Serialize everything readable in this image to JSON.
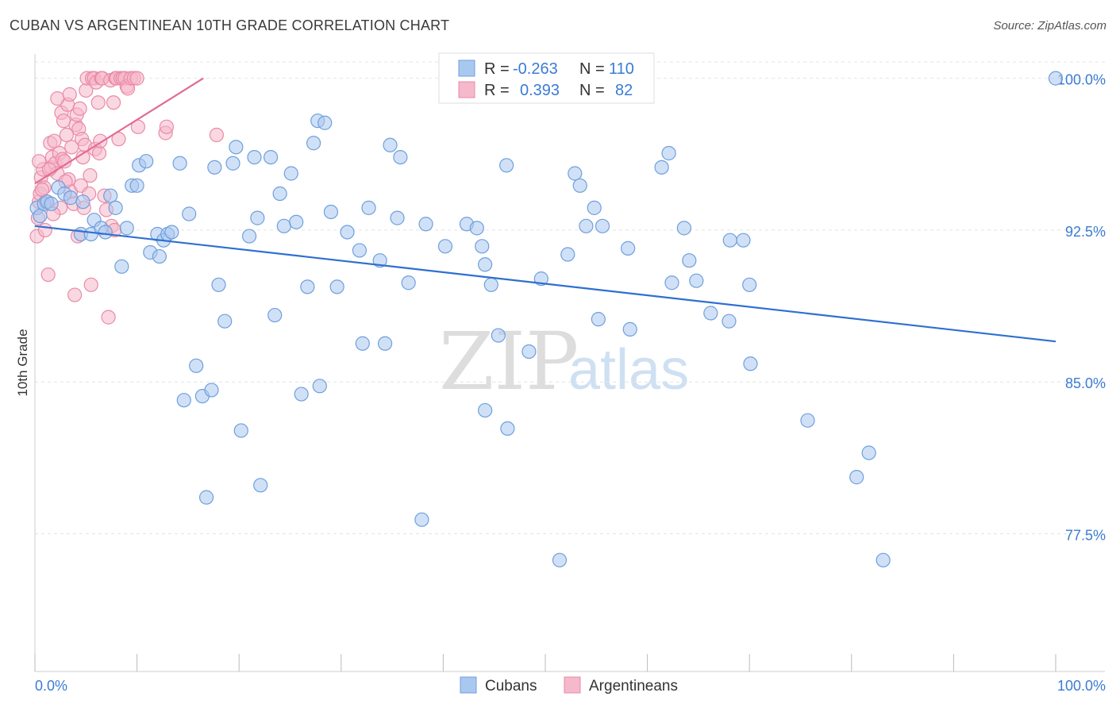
{
  "title": "CUBAN VS ARGENTINEAN 10TH GRADE CORRELATION CHART",
  "source": "Source: ZipAtlas.com",
  "watermark": {
    "part1": "ZIP",
    "part2": "atlas"
  },
  "colors": {
    "blue_fill": "#a9c8f0",
    "blue_stroke": "#6f9fdc",
    "blue_line": "#2f6fd0",
    "pink_fill": "#f6b8cb",
    "pink_stroke": "#e98aa9",
    "pink_line": "#e36a94",
    "tick_label": "#3a7bd5",
    "grid": "#e4e4e4"
  },
  "legend": {
    "rows": [
      {
        "series": "Cubans",
        "r_label": "R =",
        "r_value": "-0.263",
        "n_label": "N =",
        "n_value": "110"
      },
      {
        "series": "Argentineans",
        "r_label": "R =",
        "r_value": "0.393",
        "n_label": "N =",
        "n_value": "82"
      }
    ]
  },
  "chart_data": {
    "type": "scatter",
    "title": "CUBAN VS ARGENTINEAN 10TH GRADE CORRELATION CHART",
    "xlabel": "",
    "ylabel": "10th Grade",
    "xlim": [
      0,
      100
    ],
    "ylim": [
      70.7,
      101.2
    ],
    "x_tick_labels": [
      "0.0%",
      "100.0%"
    ],
    "y_ticks": [
      77.5,
      85.0,
      92.5,
      100.0
    ],
    "y_tick_labels": [
      "77.5%",
      "85.0%",
      "92.5%",
      "100.0%"
    ],
    "grid": true,
    "legend_position": "top-center",
    "series": [
      {
        "name": "Cubans",
        "trend": {
          "x": [
            0,
            100
          ],
          "y": [
            92.7,
            87.0
          ]
        },
        "points": [
          [
            100,
            100.0
          ],
          [
            0.2,
            93.6
          ],
          [
            0.5,
            93.2
          ],
          [
            0.9,
            93.8
          ],
          [
            1.2,
            93.9
          ],
          [
            1.6,
            93.8
          ],
          [
            2.3,
            94.6
          ],
          [
            2.9,
            94.3
          ],
          [
            3.5,
            94.1
          ],
          [
            4.5,
            92.3
          ],
          [
            4.7,
            93.9
          ],
          [
            5.5,
            92.3
          ],
          [
            5.8,
            93.0
          ],
          [
            6.5,
            92.6
          ],
          [
            6.9,
            92.4
          ],
          [
            7.4,
            94.2
          ],
          [
            7.9,
            93.6
          ],
          [
            8.5,
            90.7
          ],
          [
            9.0,
            92.6
          ],
          [
            9.5,
            94.7
          ],
          [
            10.0,
            94.7
          ],
          [
            10.2,
            95.7
          ],
          [
            10.9,
            95.9
          ],
          [
            11.3,
            91.4
          ],
          [
            12.0,
            92.3
          ],
          [
            12.2,
            91.2
          ],
          [
            12.6,
            92.0
          ],
          [
            13.0,
            92.3
          ],
          [
            13.4,
            92.4
          ],
          [
            14.2,
            95.8
          ],
          [
            14.6,
            84.1
          ],
          [
            15.1,
            93.3
          ],
          [
            15.8,
            85.8
          ],
          [
            16.4,
            84.3
          ],
          [
            16.8,
            79.3
          ],
          [
            17.3,
            84.6
          ],
          [
            17.6,
            95.6
          ],
          [
            18.0,
            89.8
          ],
          [
            18.6,
            88.0
          ],
          [
            19.4,
            95.8
          ],
          [
            19.7,
            96.6
          ],
          [
            20.2,
            82.6
          ],
          [
            21.0,
            92.2
          ],
          [
            21.5,
            96.1
          ],
          [
            21.8,
            93.1
          ],
          [
            22.1,
            79.9
          ],
          [
            23.1,
            96.1
          ],
          [
            23.5,
            88.3
          ],
          [
            24.0,
            94.3
          ],
          [
            24.4,
            92.7
          ],
          [
            25.1,
            95.3
          ],
          [
            25.6,
            92.9
          ],
          [
            26.1,
            84.4
          ],
          [
            26.7,
            89.7
          ],
          [
            27.3,
            96.8
          ],
          [
            27.7,
            97.9
          ],
          [
            27.9,
            84.8
          ],
          [
            28.4,
            97.8
          ],
          [
            29.0,
            93.4
          ],
          [
            29.6,
            89.7
          ],
          [
            30.6,
            92.4
          ],
          [
            31.8,
            91.5
          ],
          [
            32.1,
            86.9
          ],
          [
            32.7,
            93.6
          ],
          [
            33.8,
            91.0
          ],
          [
            34.3,
            86.9
          ],
          [
            34.8,
            96.7
          ],
          [
            35.5,
            93.1
          ],
          [
            35.8,
            96.1
          ],
          [
            36.6,
            89.9
          ],
          [
            37.9,
            78.2
          ],
          [
            38.3,
            92.8
          ],
          [
            40.2,
            91.7
          ],
          [
            42.3,
            92.8
          ],
          [
            43.3,
            92.6
          ],
          [
            43.8,
            91.7
          ],
          [
            44.1,
            90.8
          ],
          [
            44.1,
            83.6
          ],
          [
            44.7,
            89.8
          ],
          [
            45.4,
            87.3
          ],
          [
            46.3,
            82.7
          ],
          [
            46.2,
            95.7
          ],
          [
            48.4,
            86.5
          ],
          [
            49.6,
            90.1
          ],
          [
            51.4,
            76.2
          ],
          [
            52.2,
            91.3
          ],
          [
            52.9,
            95.3
          ],
          [
            53.4,
            94.7
          ],
          [
            54.0,
            92.7
          ],
          [
            54.8,
            93.6
          ],
          [
            55.2,
            88.1
          ],
          [
            55.6,
            92.7
          ],
          [
            58.1,
            91.6
          ],
          [
            58.3,
            87.6
          ],
          [
            61.4,
            95.6
          ],
          [
            62.1,
            96.3
          ],
          [
            62.4,
            89.9
          ],
          [
            63.6,
            92.6
          ],
          [
            64.1,
            91.0
          ],
          [
            64.8,
            90.0
          ],
          [
            66.2,
            88.4
          ],
          [
            68.0,
            88.0
          ],
          [
            68.1,
            92.0
          ],
          [
            69.4,
            92.0
          ],
          [
            70.0,
            89.8
          ],
          [
            70.1,
            85.9
          ],
          [
            75.7,
            83.1
          ],
          [
            80.5,
            80.3
          ],
          [
            81.7,
            81.5
          ],
          [
            83.1,
            76.2
          ]
        ]
      },
      {
        "name": "Argentineans",
        "trend": {
          "x": [
            0,
            16.5
          ],
          "y": [
            94.8,
            100.0
          ]
        },
        "points": [
          [
            0.2,
            92.2
          ],
          [
            0.3,
            93.1
          ],
          [
            0.4,
            93.9
          ],
          [
            0.5,
            94.3
          ],
          [
            0.6,
            95.1
          ],
          [
            0.8,
            95.5
          ],
          [
            0.9,
            94.6
          ],
          [
            1.0,
            92.5
          ],
          [
            1.1,
            93.9
          ],
          [
            1.3,
            90.3
          ],
          [
            1.5,
            96.8
          ],
          [
            1.6,
            95.6
          ],
          [
            1.7,
            96.1
          ],
          [
            1.9,
            96.9
          ],
          [
            2.0,
            95.8
          ],
          [
            2.2,
            95.3
          ],
          [
            2.4,
            96.3
          ],
          [
            2.5,
            93.6
          ],
          [
            2.6,
            98.3
          ],
          [
            2.7,
            96.0
          ],
          [
            2.9,
            95.9
          ],
          [
            3.1,
            97.2
          ],
          [
            3.2,
            98.7
          ],
          [
            3.3,
            95.0
          ],
          [
            3.4,
            99.2
          ],
          [
            3.5,
            94.4
          ],
          [
            3.6,
            96.6
          ],
          [
            3.8,
            93.8
          ],
          [
            3.9,
            89.3
          ],
          [
            4.0,
            97.7
          ],
          [
            4.1,
            98.2
          ],
          [
            4.2,
            92.2
          ],
          [
            4.3,
            97.5
          ],
          [
            4.5,
            94.7
          ],
          [
            4.6,
            97.0
          ],
          [
            4.7,
            96.1
          ],
          [
            4.8,
            93.6
          ],
          [
            4.9,
            96.7
          ],
          [
            5.0,
            99.4
          ],
          [
            5.1,
            100.0
          ],
          [
            5.3,
            94.3
          ],
          [
            5.5,
            89.8
          ],
          [
            5.6,
            100.0
          ],
          [
            5.8,
            100.0
          ],
          [
            5.9,
            96.5
          ],
          [
            6.0,
            99.8
          ],
          [
            6.2,
            98.8
          ],
          [
            6.3,
            96.3
          ],
          [
            6.5,
            100.0
          ],
          [
            6.6,
            100.0
          ],
          [
            6.8,
            94.2
          ],
          [
            7.0,
            93.5
          ],
          [
            7.2,
            88.2
          ],
          [
            7.4,
            99.9
          ],
          [
            7.5,
            92.7
          ],
          [
            7.7,
            98.8
          ],
          [
            7.9,
            100.0
          ],
          [
            8.0,
            100.0
          ],
          [
            8.2,
            97.0
          ],
          [
            8.4,
            100.0
          ],
          [
            8.6,
            100.0
          ],
          [
            8.8,
            100.0
          ],
          [
            9.0,
            99.6
          ],
          [
            9.1,
            99.5
          ],
          [
            9.4,
            100.0
          ],
          [
            9.7,
            100.0
          ],
          [
            10.0,
            100.0
          ],
          [
            10.1,
            97.6
          ],
          [
            12.8,
            97.3
          ],
          [
            12.9,
            97.6
          ],
          [
            17.8,
            97.2
          ],
          [
            2.2,
            99.0
          ],
          [
            1.4,
            95.5
          ],
          [
            3.0,
            94.9
          ],
          [
            0.7,
            94.5
          ],
          [
            5.4,
            95.2
          ],
          [
            6.4,
            96.9
          ],
          [
            7.8,
            92.5
          ],
          [
            2.8,
            97.9
          ],
          [
            4.4,
            98.5
          ],
          [
            1.8,
            93.3
          ],
          [
            0.4,
            95.9
          ]
        ]
      }
    ]
  }
}
